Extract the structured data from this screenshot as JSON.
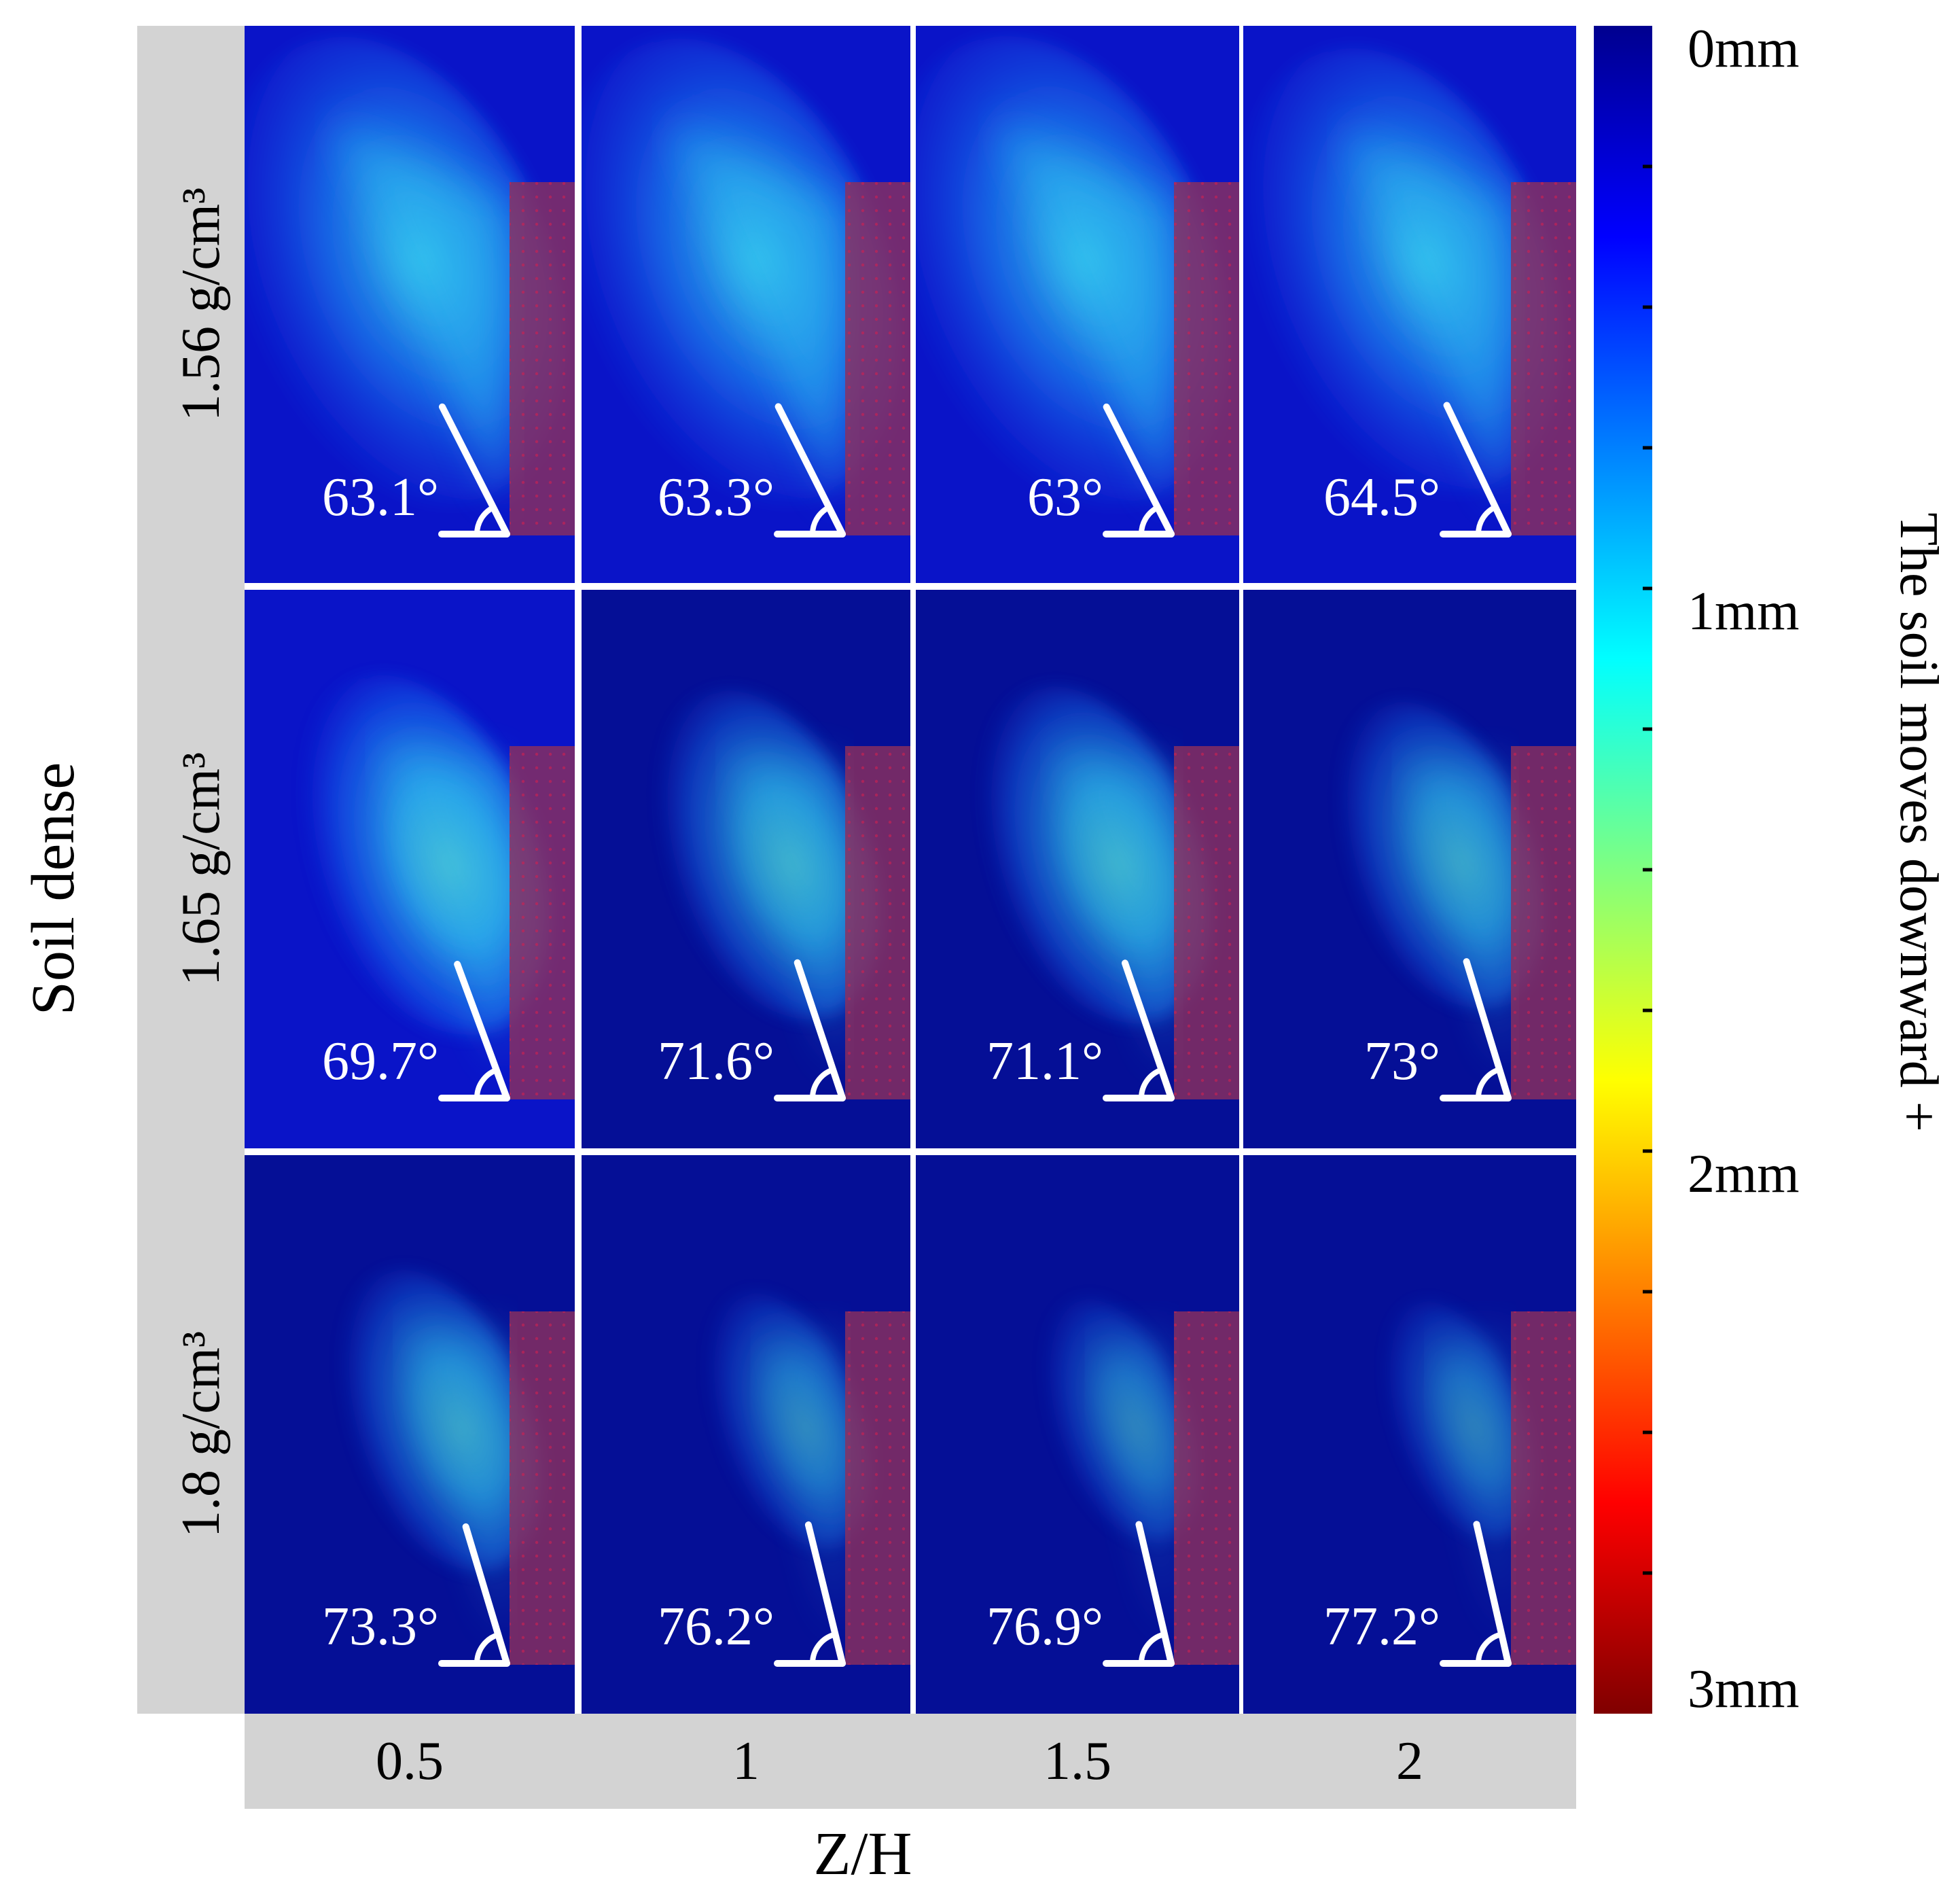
{
  "chart_data": {
    "type": "heatmap",
    "title": "",
    "xlabel": "Z/H",
    "ylabel": "Soil dense",
    "x_categories": [
      "0.5",
      "1",
      "1.5",
      "2"
    ],
    "y_categories": [
      "1.56 g/cm³",
      "1.65 g/cm³",
      "1.8 g/cm³"
    ],
    "angles_deg": [
      [
        63.1,
        63.3,
        63,
        64.5
      ],
      [
        69.7,
        71.6,
        71.1,
        73
      ],
      [
        73.3,
        76.2,
        76.9,
        77.2
      ]
    ],
    "angle_labels": [
      [
        "63.1°",
        "63.3°",
        "63°",
        "64.5°"
      ],
      [
        "69.7°",
        "71.6°",
        "71.1°",
        "73°"
      ],
      [
        "73.3°",
        "76.2°",
        "76.9°",
        "77.2°"
      ]
    ],
    "colorbar": {
      "label": "The soil moves downward +",
      "min": 0,
      "max": 3,
      "unit": "mm",
      "reversed": true,
      "tick_labels": [
        "0mm",
        "1mm",
        "2mm",
        "3mm"
      ],
      "tick_values": [
        0,
        1,
        2,
        3
      ],
      "minor_ticks": 12,
      "colormap": [
        "#00008f",
        "#0000ff",
        "#0080ff",
        "#00ffff",
        "#80ff80",
        "#ffff00",
        "#ff8000",
        "#ff0000",
        "#800000"
      ]
    },
    "colors": {
      "background_low": "#0a14c8",
      "background_dark": "#050f96",
      "header_fill": "#d3d3d3",
      "wall": "#8b2f5e",
      "plume": "#3ad7f0",
      "plume_dense": "#53f0c8",
      "annotation": "#ffffff"
    }
  }
}
